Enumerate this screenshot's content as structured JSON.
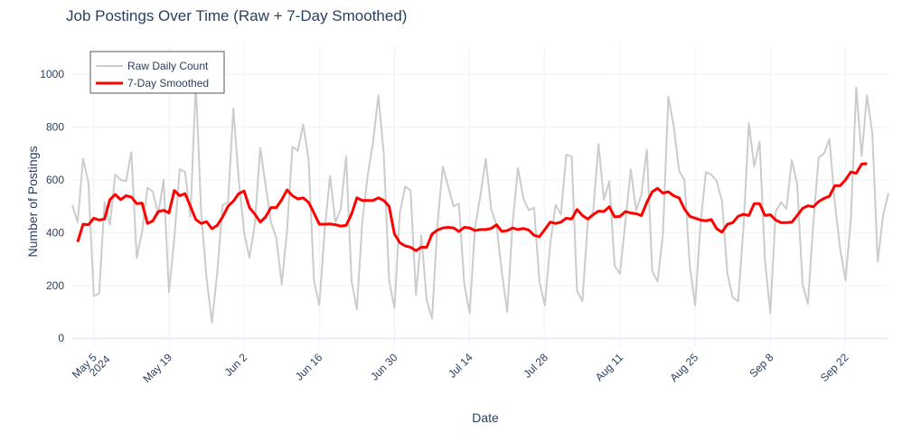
{
  "chart_data": {
    "type": "line",
    "title": "Job Postings Over Time (Raw + 7-Day Smoothed)",
    "xlabel": "Date",
    "ylabel": "Number of Postings",
    "x_start": "2024-05-01",
    "x_end": "2024-09-30",
    "ylim": [
      -30,
      1110
    ],
    "yticks": [
      0,
      200,
      400,
      600,
      800,
      1000
    ],
    "xticks": [
      {
        "date": "2024-05-05",
        "label": "May 5",
        "sublabel": "2024"
      },
      {
        "date": "2024-05-19",
        "label": "May 19",
        "sublabel": ""
      },
      {
        "date": "2024-06-02",
        "label": "Jun 2",
        "sublabel": ""
      },
      {
        "date": "2024-06-16",
        "label": "Jun 16",
        "sublabel": ""
      },
      {
        "date": "2024-06-30",
        "label": "Jun 30",
        "sublabel": ""
      },
      {
        "date": "2024-07-14",
        "label": "Jul 14",
        "sublabel": ""
      },
      {
        "date": "2024-07-28",
        "label": "Jul 28",
        "sublabel": ""
      },
      {
        "date": "2024-08-11",
        "label": "Aug 11",
        "sublabel": ""
      },
      {
        "date": "2024-08-25",
        "label": "Aug 25",
        "sublabel": ""
      },
      {
        "date": "2024-09-08",
        "label": "Sep 8",
        "sublabel": ""
      },
      {
        "date": "2024-09-22",
        "label": "Sep 22",
        "sublabel": ""
      }
    ],
    "grid": true,
    "legend_position": "top-left",
    "series": [
      {
        "name": "Raw Daily Count",
        "color": "#cccccc",
        "x": [
          "2024-05-01",
          "2024-05-02",
          "2024-05-03",
          "2024-05-04",
          "2024-05-05",
          "2024-05-06",
          "2024-05-07",
          "2024-05-08",
          "2024-05-09",
          "2024-05-10",
          "2024-05-11",
          "2024-05-12",
          "2024-05-13",
          "2024-05-14",
          "2024-05-15",
          "2024-05-16",
          "2024-05-17",
          "2024-05-18",
          "2024-05-19",
          "2024-05-20",
          "2024-05-21",
          "2024-05-22",
          "2024-05-23",
          "2024-05-24",
          "2024-05-25",
          "2024-05-26",
          "2024-05-27",
          "2024-05-28",
          "2024-05-29",
          "2024-05-30",
          "2024-05-31",
          "2024-06-01",
          "2024-06-02",
          "2024-06-03",
          "2024-06-04",
          "2024-06-05",
          "2024-06-06",
          "2024-06-07",
          "2024-06-08",
          "2024-06-09",
          "2024-06-10",
          "2024-06-11",
          "2024-06-12",
          "2024-06-13",
          "2024-06-14",
          "2024-06-15",
          "2024-06-16",
          "2024-06-17",
          "2024-06-18",
          "2024-06-19",
          "2024-06-20",
          "2024-06-21",
          "2024-06-22",
          "2024-06-23",
          "2024-06-24",
          "2024-06-25",
          "2024-06-26",
          "2024-06-27",
          "2024-06-28",
          "2024-06-29",
          "2024-06-30",
          "2024-07-01",
          "2024-07-02",
          "2024-07-03",
          "2024-07-04",
          "2024-07-05",
          "2024-07-06",
          "2024-07-07",
          "2024-07-08",
          "2024-07-09",
          "2024-07-10",
          "2024-07-11",
          "2024-07-12",
          "2024-07-13",
          "2024-07-14",
          "2024-07-15",
          "2024-07-16",
          "2024-07-17",
          "2024-07-18",
          "2024-07-19",
          "2024-07-20",
          "2024-07-21",
          "2024-07-22",
          "2024-07-23",
          "2024-07-24",
          "2024-07-25",
          "2024-07-26",
          "2024-07-27",
          "2024-07-28",
          "2024-07-29",
          "2024-07-30",
          "2024-07-31",
          "2024-08-01",
          "2024-08-02",
          "2024-08-03",
          "2024-08-04",
          "2024-08-05",
          "2024-08-06",
          "2024-08-07",
          "2024-08-08",
          "2024-08-09",
          "2024-08-10",
          "2024-08-11",
          "2024-08-12",
          "2024-08-13",
          "2024-08-14",
          "2024-08-15",
          "2024-08-16",
          "2024-08-17",
          "2024-08-18",
          "2024-08-19",
          "2024-08-20",
          "2024-08-21",
          "2024-08-22",
          "2024-08-23",
          "2024-08-24",
          "2024-08-25",
          "2024-08-26",
          "2024-08-27",
          "2024-08-28",
          "2024-08-29",
          "2024-08-30",
          "2024-08-31",
          "2024-09-01",
          "2024-09-02",
          "2024-09-03",
          "2024-09-04",
          "2024-09-05",
          "2024-09-06",
          "2024-09-07",
          "2024-09-08",
          "2024-09-09",
          "2024-09-10",
          "2024-09-11",
          "2024-09-12",
          "2024-09-13",
          "2024-09-14",
          "2024-09-15",
          "2024-09-16",
          "2024-09-17",
          "2024-09-18",
          "2024-09-19",
          "2024-09-20",
          "2024-09-21",
          "2024-09-22",
          "2024-09-23",
          "2024-09-24",
          "2024-09-25",
          "2024-09-26",
          "2024-09-27",
          "2024-09-28",
          "2024-09-29",
          "2024-09-30"
        ],
        "values": [
          505,
          440,
          680,
          590,
          160,
          170,
          515,
          430,
          620,
          600,
          595,
          705,
          305,
          405,
          570,
          555,
          470,
          600,
          175,
          380,
          640,
          630,
          460,
          970,
          475,
          230,
          60,
          250,
          505,
          515,
          870,
          600,
          400,
          305,
          435,
          720,
          580,
          440,
          380,
          205,
          410,
          725,
          710,
          810,
          680,
          220,
          125,
          410,
          615,
          440,
          490,
          690,
          220,
          110,
          440,
          615,
          740,
          920,
          700,
          220,
          115,
          475,
          575,
          560,
          165,
          390,
          145,
          75,
          430,
          650,
          575,
          500,
          510,
          205,
          95,
          420,
          540,
          680,
          490,
          430,
          250,
          100,
          435,
          645,
          530,
          485,
          495,
          215,
          125,
          355,
          505,
          470,
          695,
          690,
          180,
          140,
          440,
          480,
          735,
          525,
          595,
          275,
          245,
          440,
          640,
          485,
          545,
          715,
          255,
          215,
          395,
          915,
          805,
          635,
          600,
          275,
          125,
          435,
          630,
          620,
          595,
          520,
          245,
          155,
          140,
          420,
          815,
          650,
          745,
          295,
          95,
          480,
          515,
          490,
          675,
          585,
          205,
          130,
          435,
          685,
          700,
          755,
          515,
          340,
          220,
          450,
          950,
          690,
          920,
          775,
          290,
          465,
          550
        ]
      },
      {
        "name": "7-Day Smoothed",
        "color": "#ff0000",
        "x_start_index": 1,
        "values": [
          365,
          432,
          430,
          455,
          448,
          452,
          525,
          545,
          525,
          540,
          535,
          510,
          512,
          435,
          445,
          480,
          485,
          475,
          560,
          540,
          548,
          500,
          450,
          435,
          442,
          415,
          428,
          460,
          500,
          520,
          548,
          558,
          495,
          470,
          440,
          460,
          495,
          495,
          525,
          562,
          540,
          528,
          532,
          515,
          475,
          432,
          432,
          433,
          430,
          425,
          428,
          470,
          532,
          522,
          522,
          522,
          532,
          522,
          500,
          395,
          362,
          350,
          345,
          332,
          345,
          345,
          395,
          410,
          418,
          420,
          418,
          405,
          420,
          418,
          408,
          412,
          412,
          416,
          430,
          405,
          408,
          418,
          412,
          416,
          410,
          390,
          385,
          412,
          440,
          435,
          440,
          455,
          452,
          488,
          465,
          452,
          468,
          482,
          480,
          498,
          460,
          462,
          480,
          475,
          472,
          465,
          515,
          555,
          568,
          550,
          555,
          540,
          532,
          490,
          462,
          455,
          448,
          445,
          450,
          415,
          402,
          432,
          438,
          462,
          470,
          465,
          510,
          510,
          465,
          468,
          448,
          438,
          438,
          440,
          465,
          492,
          502,
          498,
          518,
          530,
          538,
          578,
          578,
          600,
          630,
          625,
          660,
          662
        ]
      }
    ]
  }
}
